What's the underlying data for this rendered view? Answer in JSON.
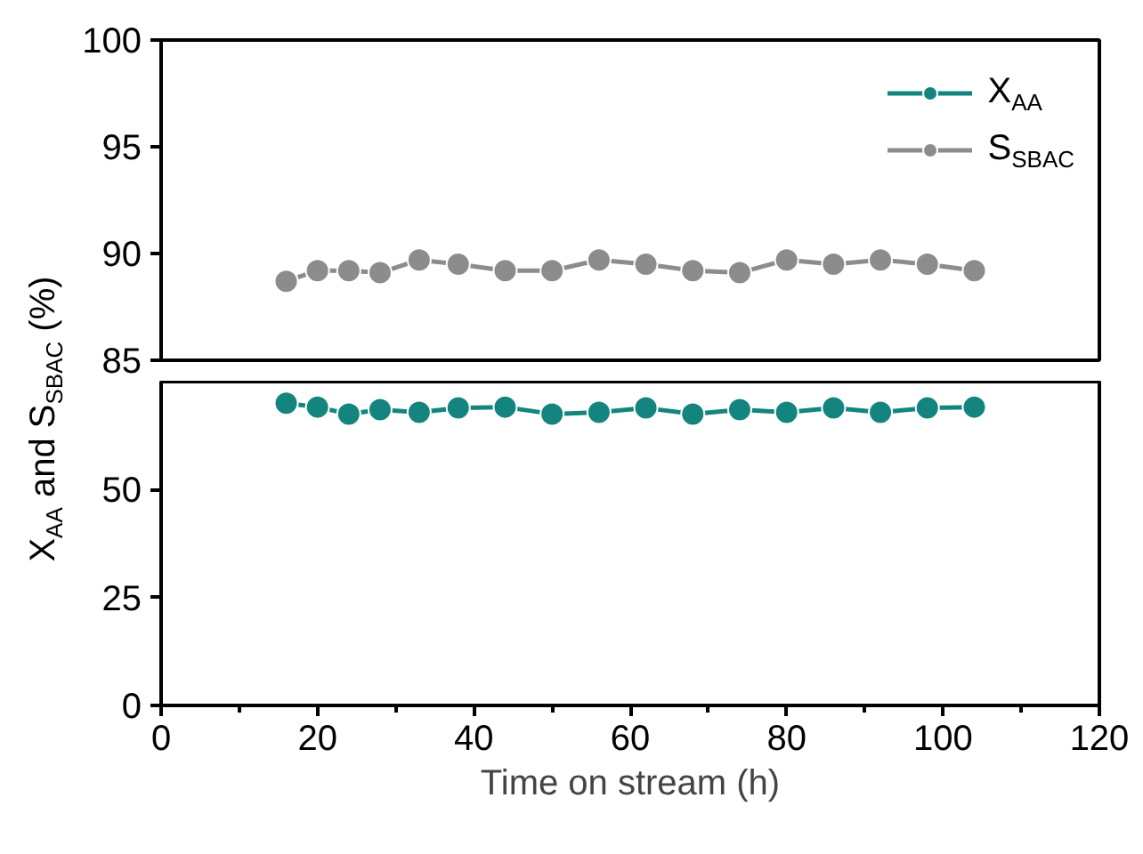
{
  "chart_data": [
    {
      "type": "line",
      "x": [
        16,
        20,
        24,
        28,
        33,
        38,
        44,
        50,
        56,
        62,
        68,
        74,
        80,
        86,
        92,
        98,
        104
      ],
      "xlim": [
        0,
        120
      ],
      "ylim": [
        85,
        100
      ],
      "yticks": [
        85,
        90,
        95,
        100
      ],
      "tick_labels": "y",
      "marker": "circle",
      "legend": "top right",
      "grid": false,
      "series": [
        {
          "name": "S$_{SBAC}$",
          "color": "#8c8c8c",
          "values": [
            88.7,
            89.2,
            89.2,
            89.1,
            89.7,
            89.5,
            89.2,
            89.2,
            89.7,
            89.5,
            89.2,
            89.1,
            89.7,
            89.5,
            89.7,
            89.5,
            89.2
          ]
        }
      ]
    },
    {
      "type": "line",
      "x": [
        16,
        20,
        24,
        28,
        33,
        38,
        44,
        50,
        56,
        62,
        68,
        74,
        80,
        86,
        92,
        98,
        104
      ],
      "xlim": [
        0,
        120
      ],
      "ylim": [
        0,
        75
      ],
      "yticks": [
        0,
        25,
        50
      ],
      "xticks": [
        0,
        {
          "value": 10,
          "label": null
        },
        20,
        {
          "value": 30,
          "label": null
        },
        40,
        {
          "value": 50,
          "label": null
        },
        60,
        {
          "value": 70,
          "label": null
        },
        80,
        {
          "value": 90,
          "label": null
        },
        100,
        {
          "value": 110,
          "label": null
        },
        120
      ],
      "xlabel": "Time on stream (h)",
      "ylabel": "X$_{AA}$ and S$_{SBAC}$ (%)",
      "marker": "circle",
      "grid": false,
      "series": [
        {
          "name": "X$_{AA}$",
          "color": "#13857e",
          "values": [
            70.0,
            69.1,
            67.5,
            68.5,
            67.9,
            68.9,
            69.1,
            67.5,
            67.9,
            68.9,
            67.5,
            68.5,
            67.9,
            68.9,
            67.9,
            68.9,
            69.1
          ]
        }
      ]
    }
  ]
}
